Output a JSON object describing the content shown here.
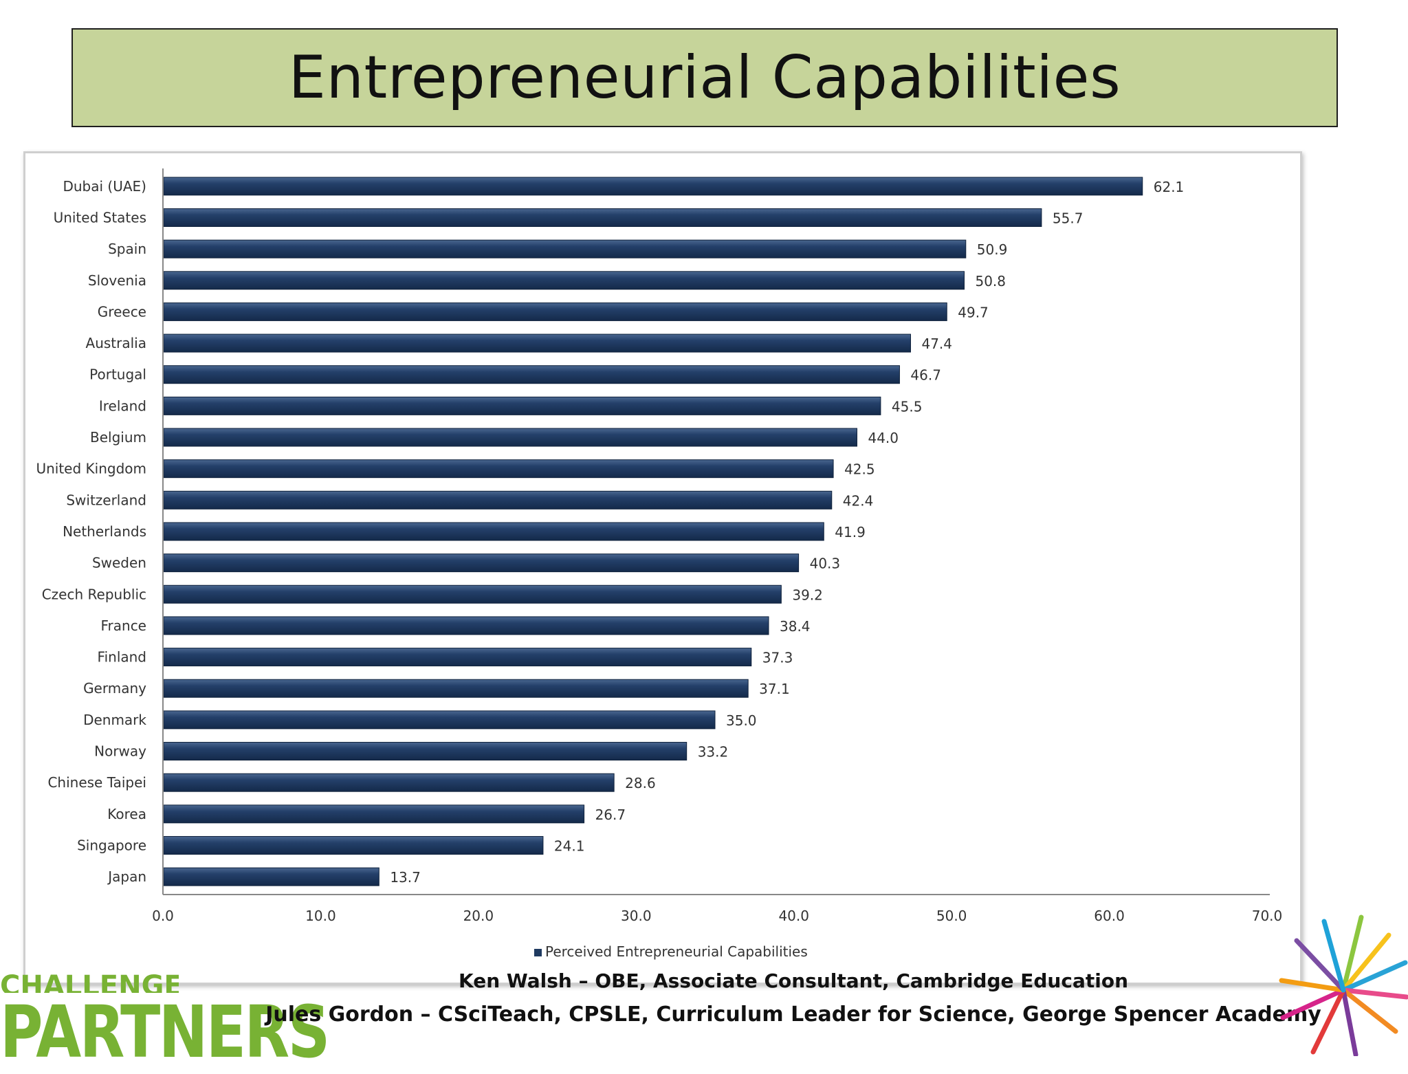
{
  "slide": {
    "title": "Entrepreneurial Capabilities",
    "footer_line1": "Ken Walsh – OBE, Associate Consultant, Cambridge Education",
    "footer_line2": "Jules Gordon – CSciTeach, CPSLE, Curriculum Leader for Science, George Spencer Academy",
    "logo_text": "PARTNERS",
    "logo_top_text": "CHALLENGE"
  },
  "chart_data": {
    "type": "bar",
    "orientation": "horizontal",
    "title": "",
    "xlabel": "",
    "ylabel": "",
    "categories": [
      "Dubai (UAE)",
      "United States",
      "Spain",
      "Slovenia",
      "Greece",
      "Australia",
      "Portugal",
      "Ireland",
      "Belgium",
      "United Kingdom",
      "Switzerland",
      "Netherlands",
      "Sweden",
      "Czech Republic",
      "France",
      "Finland",
      "Germany",
      "Denmark",
      "Norway",
      "Chinese Taipei",
      "Korea",
      "Singapore",
      "Japan"
    ],
    "series": [
      {
        "name": "Perceived Entrepreneurial Capabilities",
        "values": [
          62.1,
          55.7,
          50.9,
          50.8,
          49.7,
          47.4,
          46.7,
          45.5,
          44.0,
          42.5,
          42.4,
          41.9,
          40.3,
          39.2,
          38.4,
          37.3,
          37.1,
          35.0,
          33.2,
          28.6,
          26.7,
          24.1,
          13.7
        ],
        "value_labels": [
          "62.1",
          "55.7",
          "50.9",
          "50.8",
          "49.7",
          "47.4",
          "46.7",
          "45.5",
          "44.0",
          "42.5",
          "42.4",
          "41.9",
          "40.3",
          "39.2",
          "38.4",
          "37.3",
          "37.1",
          "35.0",
          "33.2",
          "28.6",
          "26.7",
          "24.1",
          "13.7"
        ],
        "color": "#1f3a60"
      }
    ],
    "xlim": [
      0,
      70
    ],
    "xticks": [
      0,
      10,
      20,
      30,
      40,
      50,
      60,
      70
    ],
    "xtick_labels": [
      "0.0",
      "10.0",
      "20.0",
      "30.0",
      "40.0",
      "50.0",
      "60.0",
      "70.0"
    ],
    "grid": false,
    "legend_position": "bottom"
  }
}
